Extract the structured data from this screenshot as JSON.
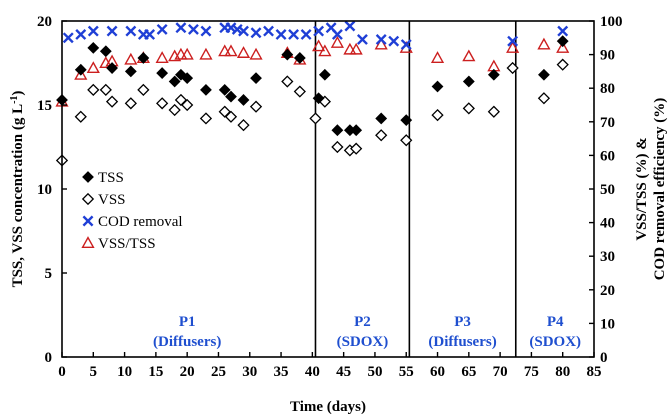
{
  "chart_data": {
    "type": "scatter",
    "title": "",
    "xlabel": "Time (days)",
    "ylabel_left": "TSS, VSS concentration (g L",
    "ylabel_left_unit_sup": "-1",
    "ylabel_left_close": ")",
    "ylabel_right_line1": "VSS/TSS (%) &",
    "ylabel_right_line2": "COD removal efficiency (%)",
    "xlim": [
      0,
      85
    ],
    "ylim_left": [
      0,
      20
    ],
    "ylim_right": [
      0,
      100
    ],
    "x_ticks": [
      0,
      5,
      10,
      15,
      20,
      25,
      30,
      35,
      40,
      45,
      50,
      55,
      60,
      65,
      70,
      75,
      80,
      85
    ],
    "y_left_ticks": [
      0,
      5,
      10,
      15,
      20
    ],
    "y_right_ticks": [
      0,
      10,
      20,
      30,
      40,
      50,
      60,
      70,
      80,
      90,
      100
    ],
    "grid": false,
    "legend_position": "left-center",
    "phase_boundaries": [
      40.5,
      55.5,
      72.5
    ],
    "phases": [
      {
        "name": "P1",
        "sub": "(Diffusers)",
        "x_center": 20
      },
      {
        "name": "P2",
        "sub": "(SDOX)",
        "x_center": 48
      },
      {
        "name": "P3",
        "sub": "(Diffusers)",
        "x_center": 64
      },
      {
        "name": "P4",
        "sub": "(SDOX)",
        "x_center": 78.8
      }
    ],
    "series": [
      {
        "name": "TSS",
        "axis": "left",
        "marker": "diamond-filled",
        "color": "#000000",
        "x": [
          0,
          3,
          5,
          7,
          8,
          11,
          13,
          16,
          18,
          19,
          20,
          23,
          26,
          27,
          29,
          31,
          36,
          38,
          41,
          42,
          44,
          46,
          47,
          51,
          55,
          60,
          65,
          69,
          77,
          80
        ],
        "y": [
          15.3,
          17.1,
          18.4,
          18.2,
          17.2,
          17.0,
          17.8,
          16.9,
          16.4,
          16.8,
          16.6,
          15.9,
          15.9,
          15.5,
          15.3,
          16.6,
          18.0,
          17.8,
          15.4,
          16.8,
          13.5,
          13.5,
          13.5,
          14.2,
          14.1,
          16.1,
          16.4,
          16.8,
          16.8,
          18.8
        ]
      },
      {
        "name": "VSS",
        "axis": "left",
        "marker": "diamond-open",
        "color": "#000000",
        "x": [
          0,
          3,
          5,
          7,
          8,
          11,
          13,
          16,
          18,
          19,
          20,
          23,
          26,
          27,
          29,
          31,
          36,
          38,
          40.5,
          42,
          44,
          46,
          47,
          51,
          55,
          60,
          65,
          69,
          72,
          77,
          80
        ],
        "y": [
          11.7,
          14.3,
          15.9,
          15.9,
          15.2,
          15.1,
          15.9,
          15.1,
          14.7,
          15.3,
          15.0,
          14.2,
          14.6,
          14.3,
          13.8,
          14.9,
          16.4,
          15.8,
          14.2,
          15.2,
          12.5,
          12.3,
          12.4,
          13.2,
          12.9,
          14.4,
          14.8,
          14.6,
          17.2,
          15.4,
          17.4
        ]
      },
      {
        "name": "COD removal",
        "axis": "right",
        "marker": "x",
        "color": "#1f3fd6",
        "x": [
          1,
          3,
          5,
          8,
          11,
          13,
          14,
          16,
          19,
          21,
          23,
          26,
          27,
          28,
          29,
          31,
          33,
          35,
          37,
          39,
          41,
          43,
          44,
          46,
          48,
          51,
          53,
          55,
          72,
          80
        ],
        "y": [
          95,
          96,
          97,
          97,
          97,
          96,
          96,
          97.5,
          98,
          97.5,
          97,
          98,
          98,
          97.5,
          97,
          96.5,
          97,
          96,
          96,
          96,
          97,
          98,
          96,
          98.5,
          94.5,
          94.5,
          94,
          93,
          94,
          97
        ]
      },
      {
        "name": "VSS/TSS",
        "axis": "right",
        "marker": "triangle-open",
        "color": "#cc1f1f",
        "x": [
          0,
          3,
          5,
          7,
          8,
          11,
          13,
          16,
          18,
          19,
          20,
          23,
          26,
          27,
          29,
          31,
          36,
          38,
          41,
          42,
          44,
          46,
          47,
          51,
          55,
          60,
          65,
          69,
          72,
          77,
          80
        ],
        "y": [
          76,
          84,
          86,
          87.5,
          88,
          88.5,
          89,
          89,
          89.5,
          90,
          90,
          90,
          91,
          91,
          90.5,
          90,
          90.5,
          88.5,
          92.5,
          91,
          93.5,
          91.5,
          91.5,
          93,
          92,
          89,
          89.5,
          86.5,
          92,
          93,
          92
        ]
      }
    ]
  }
}
